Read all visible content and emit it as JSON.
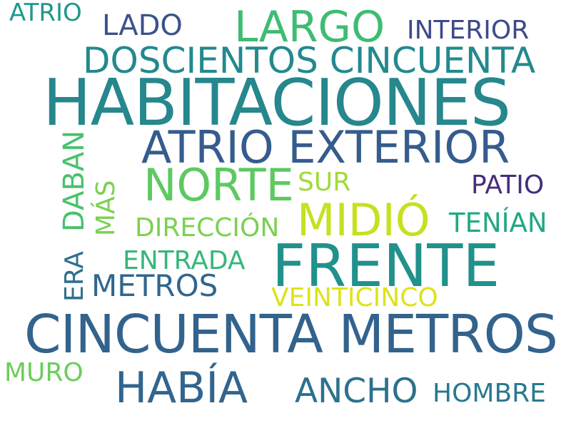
{
  "words": [
    {
      "text": "HABITACIONES",
      "color": "#26878d"
    },
    {
      "text": "FRENTE",
      "color": "#21918c"
    },
    {
      "text": "CINCUENTA METROS",
      "color": "#33638d"
    },
    {
      "text": "ATRIO EXTERIOR",
      "color": "#365c8d"
    },
    {
      "text": "MIDIÓ",
      "color": "#c7e020"
    },
    {
      "text": "NORTE",
      "color": "#5ec962"
    },
    {
      "text": "LARGO",
      "color": "#3fbc73"
    },
    {
      "text": "DOSCIENTOS CINCUENTA",
      "color": "#23898e"
    },
    {
      "text": "HABÍA",
      "color": "#32658e"
    },
    {
      "text": "ANCHO",
      "color": "#2c718e"
    },
    {
      "text": "LADO",
      "color": "#3b528b"
    },
    {
      "text": "INTERIOR",
      "color": "#3e4a89"
    },
    {
      "text": "ATRIO",
      "color": "#1f988b"
    },
    {
      "text": "PATIO",
      "color": "#472d7b"
    },
    {
      "text": "SUR",
      "color": "#9fda3a"
    },
    {
      "text": "TENÍAN",
      "color": "#22a884"
    },
    {
      "text": "DIRECCIÓN",
      "color": "#7ad151"
    },
    {
      "text": "ENTRADA",
      "color": "#35b779"
    },
    {
      "text": "METROS",
      "color": "#31668e"
    },
    {
      "text": "VEINTICINCO",
      "color": "#dde318"
    },
    {
      "text": "HOMBRE",
      "color": "#2a788e"
    },
    {
      "text": "MURO",
      "color": "#6ccd5a"
    },
    {
      "text": "DABAN",
      "color": "#4ac16d"
    },
    {
      "text": "MÁS",
      "color": "#7ad151"
    },
    {
      "text": "ERA",
      "color": "#2d708e"
    }
  ]
}
